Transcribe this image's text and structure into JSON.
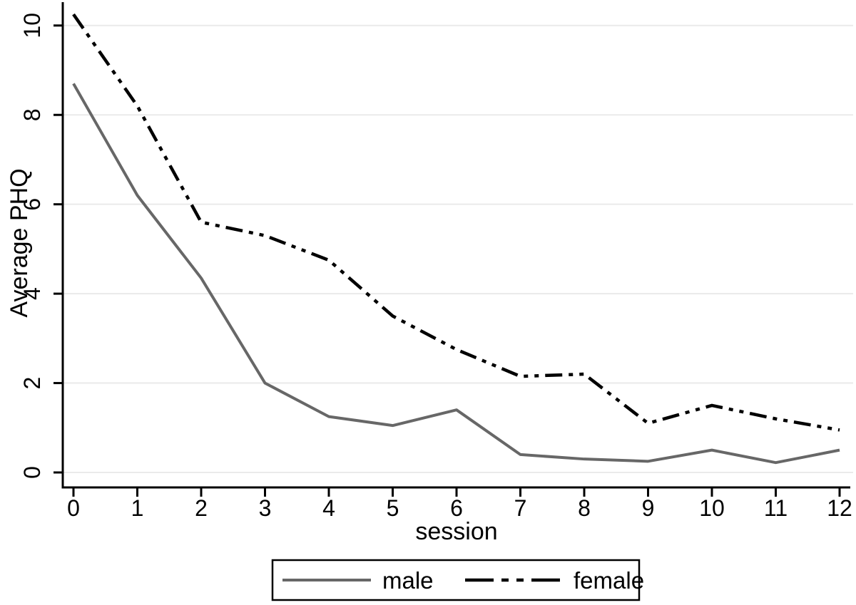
{
  "figure": {
    "background": "#ffffff"
  },
  "chart_data": {
    "type": "line",
    "title": "",
    "xlabel": "session",
    "ylabel": "Average PHQ",
    "x": [
      0,
      1,
      2,
      3,
      4,
      5,
      6,
      7,
      8,
      9,
      10,
      11,
      12
    ],
    "xticks": [
      0,
      1,
      2,
      3,
      4,
      5,
      6,
      7,
      8,
      9,
      10,
      11,
      12
    ],
    "yticks": [
      0,
      2,
      4,
      6,
      8,
      10
    ],
    "xlim": [
      0,
      12
    ],
    "ylim": [
      0,
      10
    ],
    "grid": "horizontal-light",
    "gridline_color": "#eaeaea",
    "axis_color": "#000000",
    "series": [
      {
        "name": "male",
        "color": "#676767",
        "line_style": "solid",
        "values": [
          8.7,
          6.2,
          4.35,
          2.0,
          1.25,
          1.05,
          1.4,
          0.4,
          0.3,
          0.25,
          0.5,
          0.22,
          0.5
        ]
      },
      {
        "name": "female",
        "color": "#000000",
        "line_style": "dash-dot-dot",
        "values": [
          10.25,
          8.2,
          5.6,
          5.3,
          4.75,
          3.5,
          2.75,
          2.15,
          2.2,
          1.1,
          1.5,
          1.2,
          0.95
        ]
      }
    ],
    "legend": {
      "position": "bottom-center",
      "items": [
        "male",
        "female"
      ]
    }
  }
}
